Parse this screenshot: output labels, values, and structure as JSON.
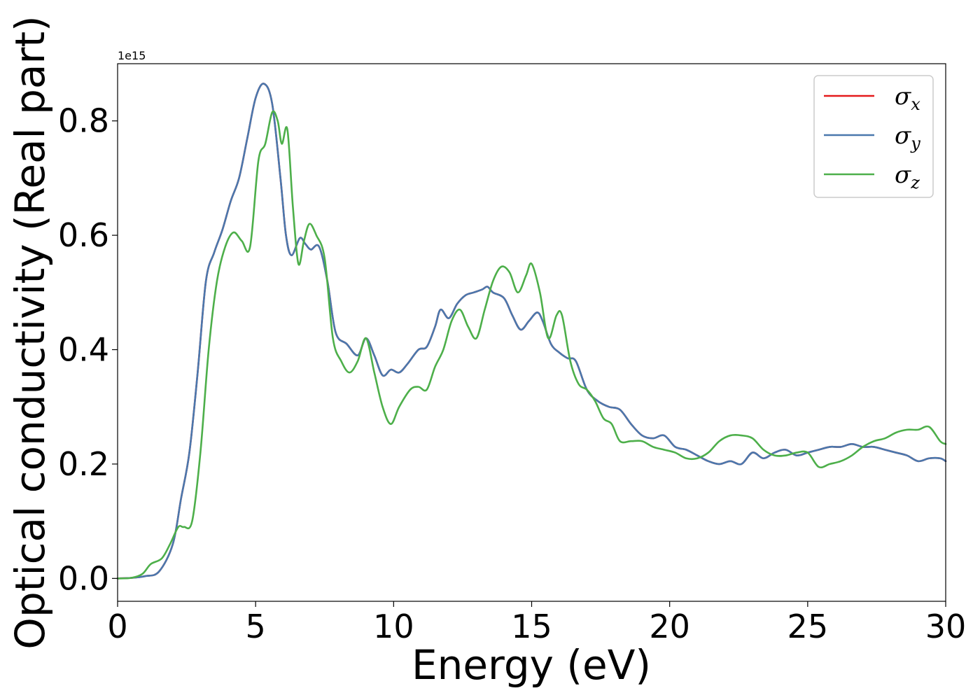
{
  "chart_data": {
    "type": "line",
    "title": "",
    "xlabel": "Energy (eV)",
    "ylabel": "Optical conductivity (Real part)",
    "y_offset_label": "1e15",
    "xlim": [
      0,
      30
    ],
    "ylim": [
      -0.04,
      0.9
    ],
    "xticks": [
      0,
      5,
      10,
      15,
      20,
      25,
      30
    ],
    "yticks": [
      0.0,
      0.2,
      0.4,
      0.6,
      0.8
    ],
    "xtick_labels": [
      "0",
      "5",
      "10",
      "15",
      "20",
      "25",
      "30"
    ],
    "ytick_labels": [
      "0.0",
      "0.2",
      "0.4",
      "0.6",
      "0.8"
    ],
    "grid": false,
    "legend_position": "upper-right",
    "series": [
      {
        "name": "σx",
        "legend_base": "σ",
        "legend_sub": "x",
        "color": "#e41a1c",
        "x": [
          0,
          0.5,
          1.0,
          1.5,
          2.0,
          2.3,
          2.6,
          2.9,
          3.2,
          3.5,
          3.8,
          4.1,
          4.4,
          4.7,
          5.0,
          5.3,
          5.6,
          5.9,
          6.1,
          6.3,
          6.6,
          6.8,
          7.0,
          7.3,
          7.6,
          7.9,
          8.3,
          8.7,
          9.0,
          9.3,
          9.6,
          9.9,
          10.2,
          10.5,
          10.9,
          11.2,
          11.5,
          11.7,
          12.0,
          12.3,
          12.6,
          12.9,
          13.2,
          13.4,
          13.6,
          14.0,
          14.3,
          14.6,
          14.9,
          15.2,
          15.4,
          15.7,
          16.0,
          16.3,
          16.6,
          17.0,
          17.4,
          17.8,
          18.2,
          18.6,
          19.0,
          19.4,
          19.8,
          20.2,
          20.6,
          21.0,
          21.4,
          21.8,
          22.2,
          22.6,
          23.0,
          23.4,
          23.8,
          24.2,
          24.6,
          25.0,
          25.4,
          25.8,
          26.2,
          26.6,
          27.0,
          27.4,
          27.8,
          28.2,
          28.6,
          29.0,
          29.4,
          29.8,
          30.0
        ],
        "y": [
          0,
          0.001,
          0.004,
          0.012,
          0.06,
          0.14,
          0.22,
          0.36,
          0.52,
          0.57,
          0.61,
          0.66,
          0.7,
          0.77,
          0.84,
          0.865,
          0.83,
          0.7,
          0.6,
          0.565,
          0.595,
          0.585,
          0.575,
          0.58,
          0.52,
          0.43,
          0.41,
          0.39,
          0.42,
          0.39,
          0.355,
          0.365,
          0.36,
          0.375,
          0.4,
          0.405,
          0.44,
          0.47,
          0.455,
          0.48,
          0.495,
          0.5,
          0.505,
          0.51,
          0.5,
          0.49,
          0.46,
          0.435,
          0.45,
          0.465,
          0.45,
          0.41,
          0.395,
          0.385,
          0.38,
          0.33,
          0.31,
          0.3,
          0.295,
          0.27,
          0.25,
          0.245,
          0.25,
          0.23,
          0.225,
          0.215,
          0.205,
          0.2,
          0.205,
          0.2,
          0.22,
          0.21,
          0.22,
          0.225,
          0.215,
          0.22,
          0.225,
          0.23,
          0.23,
          0.235,
          0.23,
          0.23,
          0.225,
          0.22,
          0.215,
          0.205,
          0.21,
          0.21,
          0.205
        ]
      },
      {
        "name": "σy",
        "legend_base": "σ",
        "legend_sub": "y",
        "color": "#4a78ad",
        "x": [
          0,
          0.5,
          1.0,
          1.5,
          2.0,
          2.3,
          2.6,
          2.9,
          3.2,
          3.5,
          3.8,
          4.1,
          4.4,
          4.7,
          5.0,
          5.3,
          5.6,
          5.9,
          6.1,
          6.3,
          6.6,
          6.8,
          7.0,
          7.3,
          7.6,
          7.9,
          8.3,
          8.7,
          9.0,
          9.3,
          9.6,
          9.9,
          10.2,
          10.5,
          10.9,
          11.2,
          11.5,
          11.7,
          12.0,
          12.3,
          12.6,
          12.9,
          13.2,
          13.4,
          13.6,
          14.0,
          14.3,
          14.6,
          14.9,
          15.2,
          15.4,
          15.7,
          16.0,
          16.3,
          16.6,
          17.0,
          17.4,
          17.8,
          18.2,
          18.6,
          19.0,
          19.4,
          19.8,
          20.2,
          20.6,
          21.0,
          21.4,
          21.8,
          22.2,
          22.6,
          23.0,
          23.4,
          23.8,
          24.2,
          24.6,
          25.0,
          25.4,
          25.8,
          26.2,
          26.6,
          27.0,
          27.4,
          27.8,
          28.2,
          28.6,
          29.0,
          29.4,
          29.8,
          30.0
        ],
        "y": [
          0,
          0.001,
          0.004,
          0.012,
          0.06,
          0.14,
          0.22,
          0.36,
          0.52,
          0.57,
          0.61,
          0.66,
          0.7,
          0.77,
          0.84,
          0.865,
          0.83,
          0.7,
          0.6,
          0.565,
          0.595,
          0.585,
          0.575,
          0.58,
          0.52,
          0.43,
          0.41,
          0.39,
          0.42,
          0.39,
          0.355,
          0.365,
          0.36,
          0.375,
          0.4,
          0.405,
          0.44,
          0.47,
          0.455,
          0.48,
          0.495,
          0.5,
          0.505,
          0.51,
          0.5,
          0.49,
          0.46,
          0.435,
          0.45,
          0.465,
          0.45,
          0.41,
          0.395,
          0.385,
          0.38,
          0.33,
          0.31,
          0.3,
          0.295,
          0.27,
          0.25,
          0.245,
          0.25,
          0.23,
          0.225,
          0.215,
          0.205,
          0.2,
          0.205,
          0.2,
          0.22,
          0.21,
          0.22,
          0.225,
          0.215,
          0.22,
          0.225,
          0.23,
          0.23,
          0.235,
          0.23,
          0.23,
          0.225,
          0.22,
          0.215,
          0.205,
          0.21,
          0.21,
          0.205
        ]
      },
      {
        "name": "σz",
        "legend_base": "σ",
        "legend_sub": "z",
        "color": "#4daf4a",
        "x": [
          0,
          0.5,
          0.9,
          1.2,
          1.6,
          1.9,
          2.2,
          2.4,
          2.7,
          3.0,
          3.3,
          3.6,
          3.9,
          4.2,
          4.5,
          4.8,
          5.1,
          5.35,
          5.6,
          5.8,
          5.95,
          6.15,
          6.35,
          6.55,
          6.75,
          6.95,
          7.2,
          7.5,
          7.8,
          8.1,
          8.4,
          8.7,
          9.0,
          9.3,
          9.6,
          9.9,
          10.2,
          10.6,
          10.9,
          11.2,
          11.5,
          11.8,
          12.1,
          12.4,
          12.7,
          13.0,
          13.3,
          13.6,
          13.9,
          14.2,
          14.5,
          14.8,
          15.0,
          15.3,
          15.6,
          15.9,
          16.1,
          16.4,
          16.7,
          17.0,
          17.3,
          17.6,
          17.9,
          18.2,
          18.6,
          19.0,
          19.4,
          19.8,
          20.2,
          20.6,
          21.0,
          21.4,
          21.8,
          22.2,
          22.6,
          23.0,
          23.4,
          23.8,
          24.2,
          24.6,
          25.0,
          25.4,
          25.8,
          26.2,
          26.6,
          27.0,
          27.4,
          27.8,
          28.2,
          28.6,
          29.0,
          29.4,
          29.8,
          30.0
        ],
        "y": [
          0,
          0.001,
          0.008,
          0.025,
          0.035,
          0.06,
          0.09,
          0.09,
          0.1,
          0.22,
          0.4,
          0.52,
          0.58,
          0.605,
          0.59,
          0.58,
          0.73,
          0.76,
          0.815,
          0.8,
          0.76,
          0.785,
          0.65,
          0.55,
          0.59,
          0.62,
          0.6,
          0.56,
          0.42,
          0.38,
          0.36,
          0.38,
          0.42,
          0.36,
          0.3,
          0.27,
          0.3,
          0.33,
          0.335,
          0.33,
          0.37,
          0.4,
          0.45,
          0.47,
          0.44,
          0.42,
          0.47,
          0.52,
          0.545,
          0.535,
          0.5,
          0.53,
          0.55,
          0.5,
          0.42,
          0.46,
          0.46,
          0.38,
          0.34,
          0.33,
          0.31,
          0.28,
          0.27,
          0.24,
          0.24,
          0.24,
          0.23,
          0.225,
          0.22,
          0.21,
          0.21,
          0.22,
          0.24,
          0.25,
          0.25,
          0.245,
          0.225,
          0.215,
          0.215,
          0.22,
          0.22,
          0.195,
          0.2,
          0.205,
          0.215,
          0.23,
          0.24,
          0.245,
          0.255,
          0.26,
          0.26,
          0.265,
          0.24,
          0.235
        ]
      }
    ]
  }
}
